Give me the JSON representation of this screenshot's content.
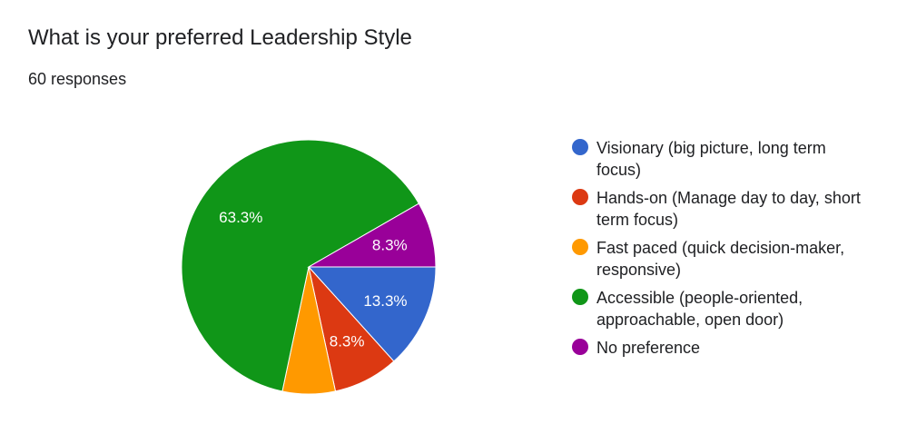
{
  "header": {
    "title": "What is your preferred Leadership Style",
    "subtitle": "60 responses"
  },
  "chart_data": {
    "type": "pie",
    "categories": [
      "Visionary (big picture, long term focus)",
      "Hands-on (Manage day to day, short term focus)",
      "Fast paced (quick decision-maker, responsive)",
      "Accessible (people-oriented, approachable, open door)",
      "No preference"
    ],
    "values": [
      13.3,
      8.3,
      6.7,
      63.3,
      8.3
    ],
    "labels": [
      "13.3%",
      "8.3%",
      "",
      "63.3%",
      "8.3%"
    ],
    "colors": [
      "#3366cc",
      "#dc3912",
      "#ff9900",
      "#109618",
      "#990099"
    ],
    "legend_position": "right"
  }
}
